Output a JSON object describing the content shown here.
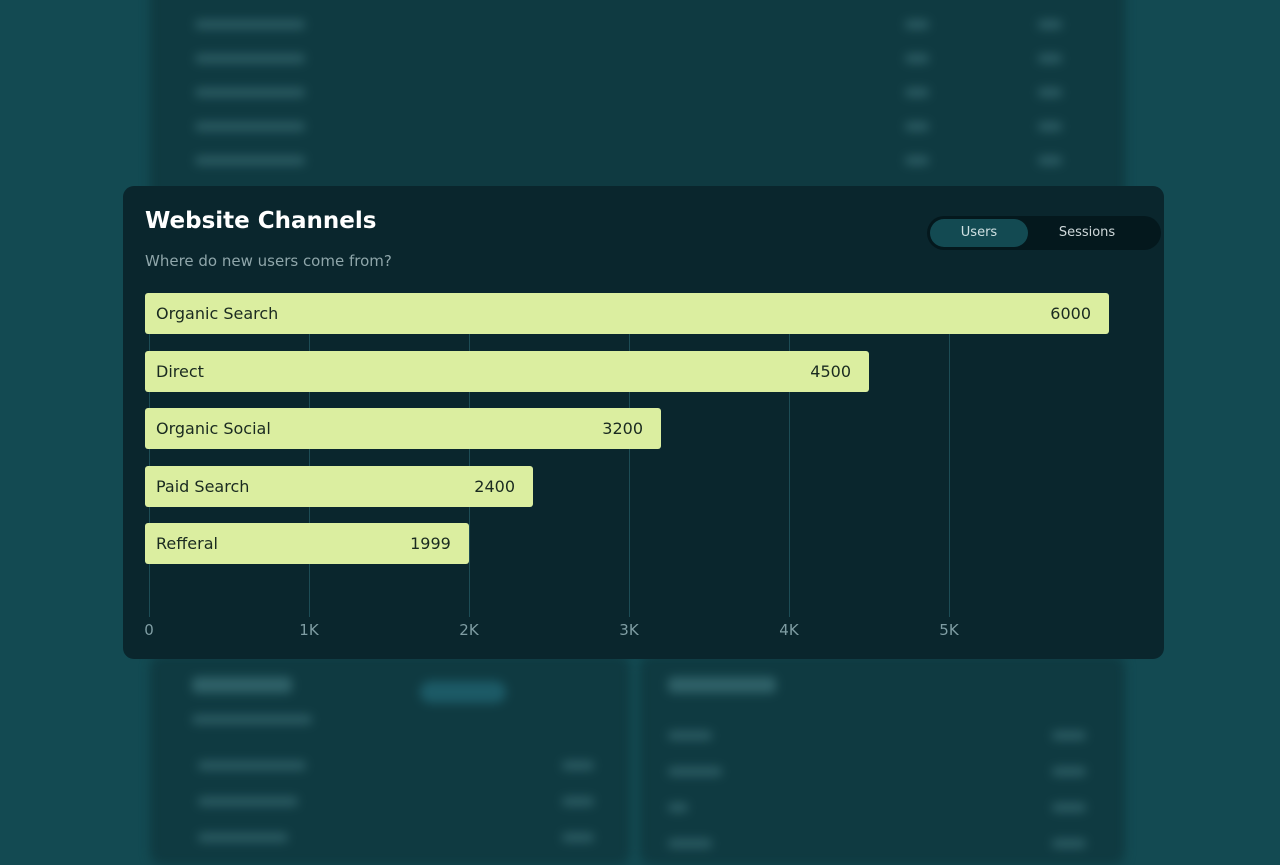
{
  "card": {
    "title": "Website Channels",
    "subtitle": "Where do new users come from?"
  },
  "toggle": {
    "options": [
      "Users",
      "Sessions"
    ],
    "selected": "Users"
  },
  "colors": {
    "page_background": "#134a52",
    "card_background": "#0a262d",
    "bar": "#dbeea0",
    "toggle_active": "#134a52"
  },
  "chart_data": {
    "type": "bar",
    "orientation": "horizontal",
    "title": "Website Channels",
    "subtitle": "Where do new users come from?",
    "categories": [
      "Organic Search",
      "Direct",
      "Organic Social",
      "Paid Search",
      "Refferal"
    ],
    "values": [
      6000,
      4500,
      3200,
      2400,
      1999
    ],
    "value_labels": [
      "6000",
      "4500",
      "3200",
      "2400",
      "1999"
    ],
    "x_ticks": [
      0,
      1000,
      2000,
      3000,
      4000,
      5000
    ],
    "x_tick_labels": [
      "0",
      "1K",
      "2K",
      "3K",
      "4K",
      "5K"
    ],
    "grid": true,
    "legend": "none"
  }
}
